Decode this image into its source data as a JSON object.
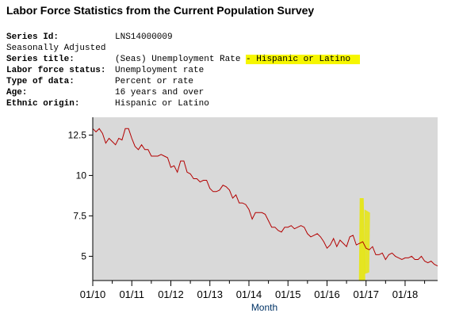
{
  "page": {
    "title": "Labor Force Statistics from the Current Population Survey"
  },
  "series_info": {
    "rows": [
      {
        "label": "Series Id:",
        "value": "LNS14000009"
      },
      {
        "label": "Seasonally Adjusted",
        "value": ""
      },
      {
        "label": "Series title:",
        "value": "(Seas) Unemployment Rate",
        "value_highlight": "- Hispanic or Latino"
      },
      {
        "label": "Labor force status:",
        "value": "Unemployment rate"
      },
      {
        "label": "Type of data:",
        "value": "Percent or rate"
      },
      {
        "label": "Age:",
        "value": "16 years and over"
      },
      {
        "label": "Ethnic origin:",
        "value": "Hispanic or Latino"
      }
    ],
    "highlight_color": "#f6f600"
  },
  "chart_data": {
    "type": "line",
    "title": "",
    "xlabel": "Month",
    "ylabel": "",
    "x_start": "01/10",
    "x_ticks": [
      "01/10",
      "01/11",
      "01/12",
      "01/13",
      "01/14",
      "01/15",
      "01/16",
      "01/17",
      "01/18"
    ],
    "y_ticks": [
      5,
      7.5,
      10,
      12.5
    ],
    "ylim": [
      3.5,
      13.6
    ],
    "x_range_months": [
      0,
      106
    ],
    "grid": false,
    "background": "#d9d9d9",
    "line_color": "#b30000",
    "annotation": {
      "type": "highlighter-mark",
      "near": "01/17",
      "color": "#e6e600"
    },
    "series": [
      {
        "values": [
          12.9,
          12.7,
          12.9,
          12.6,
          12.0,
          12.3,
          12.1,
          11.9,
          12.3,
          12.2,
          12.9,
          12.9,
          12.3,
          11.8,
          11.6,
          11.9,
          11.6,
          11.6,
          11.2,
          11.2,
          11.2,
          11.3,
          11.2,
          11.1,
          10.5,
          10.6,
          10.2,
          10.9,
          10.9,
          10.2,
          10.1,
          9.8,
          9.8,
          9.6,
          9.7,
          9.7,
          9.2,
          9.0,
          9.0,
          9.1,
          9.4,
          9.3,
          9.1,
          8.6,
          8.8,
          8.3,
          8.3,
          8.2,
          7.9,
          7.3,
          7.7,
          7.7,
          7.7,
          7.6,
          7.2,
          6.8,
          6.8,
          6.6,
          6.5,
          6.8,
          6.8,
          6.9,
          6.7,
          6.8,
          6.9,
          6.8,
          6.4,
          6.2,
          6.3,
          6.4,
          6.2,
          5.9,
          5.5,
          5.7,
          6.1,
          5.6,
          6.0,
          5.8,
          5.6,
          6.2,
          6.3,
          5.7,
          5.8,
          5.9,
          5.5,
          5.4,
          5.6,
          5.1,
          5.1,
          5.2,
          4.8,
          5.1,
          5.2,
          5.0,
          4.9,
          4.8,
          4.9,
          4.9,
          5.0,
          4.8,
          4.8,
          5.0,
          4.7,
          4.6,
          4.7,
          4.5,
          4.4
        ]
      }
    ]
  }
}
